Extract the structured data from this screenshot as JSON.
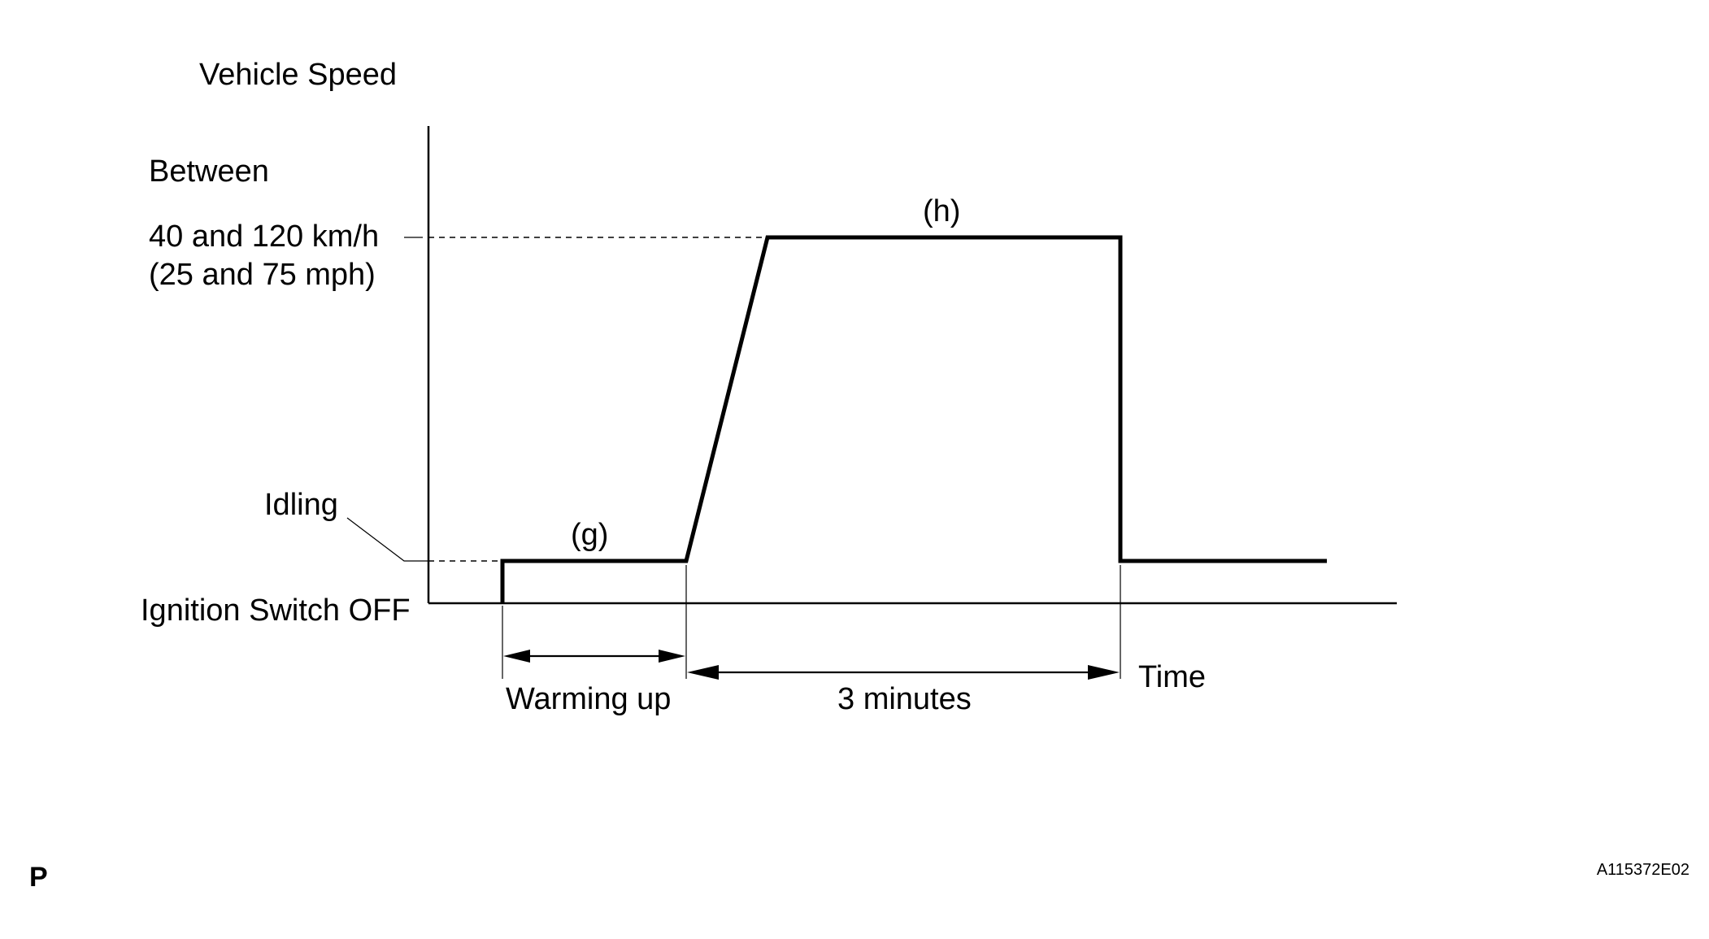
{
  "diagram": {
    "y_axis_title": "Vehicle Speed",
    "x_axis_title": "Time",
    "levels": {
      "high_line1": "Between",
      "high_line2": "40 and 120 km/h",
      "high_line3": "(25 and 75 mph)",
      "idle": "Idling",
      "off": "Ignition Switch OFF"
    },
    "phase_labels": {
      "g": "(g)",
      "h": "(h)"
    },
    "durations": {
      "warming": "Warming up",
      "cruise": "3 minutes"
    },
    "corner_mark": "P",
    "figure_id": "A115372E02"
  }
}
